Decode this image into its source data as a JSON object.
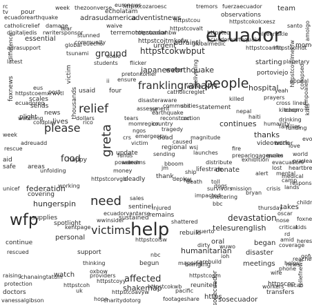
{
  "wordcloud": {
    "text_color": "#2b2b2b",
    "background": "#ffffff",
    "words": [
      {
        "text": "ecuador"
      },
      {
        "text": "help"
      },
      {
        "text": "wfp"
      },
      {
        "text": "people"
      },
      {
        "text": "need"
      },
      {
        "text": "relief"
      },
      {
        "text": "victims"
      },
      {
        "text": "please"
      },
      {
        "text": "greta"
      },
      {
        "text": "franklingraham"
      },
      {
        "text": "affected"
      },
      {
        "text": "food"
      },
      {
        "text": "ground"
      },
      {
        "text": "httpstcokwbput"
      },
      {
        "text": "japanesebrthquake"
      },
      {
        "text": "federation"
      },
      {
        "text": "devastation"
      },
      {
        "text": "telesurenglish"
      },
      {
        "text": "hungerspin"
      },
      {
        "text": "donate"
      },
      {
        "text": "shakemap"
      },
      {
        "text": "humanitarian"
      },
      {
        "text": "disaster"
      },
      {
        "text": "meetings"
      },
      {
        "text": "sosecuador"
      },
      {
        "text": "hospital"
      },
      {
        "text": "thanks"
      },
      {
        "text": "continues"
      },
      {
        "text": "portoviejo"
      },
      {
        "text": "starting"
      },
      {
        "text": "adraintl"
      },
      {
        "text": "httpstcojtmkefw"
      },
      {
        "text": "essential"
      },
      {
        "text": "adrasudamerica"
      },
      {
        "text": "terremotoecuador"
      },
      {
        "text": "thezoonverse"
      },
      {
        "text": "echolatam"
      },
      {
        "text": "globalmedic"
      },
      {
        "text": "videowork"
      },
      {
        "text": "statement"
      },
      {
        "text": "watch"
      },
      {
        "text": "victim"
      },
      {
        "text": "team"
      },
      {
        "text": "observations"
      },
      {
        "text": "fuerzaecuador"
      },
      {
        "text": "euronews"
      },
      {
        "text": "tremors"
      },
      {
        "text": "kitts"
      },
      {
        "text": "latest"
      },
      {
        "text": "support"
      },
      {
        "text": "dead"
      },
      {
        "text": "update"
      },
      {
        "text": "thank"
      },
      {
        "text": "urgent"
      },
      {
        "text": "moment"
      },
      {
        "text": "plight"
      },
      {
        "text": "scales"
      },
      {
        "text": "sends"
      },
      {
        "text": "begun"
      },
      {
        "text": "regional"
      },
      {
        "text": "remains"
      },
      {
        "text": "adventistnews"
      },
      {
        "text": "rescue"
      },
      {
        "text": "aid"
      },
      {
        "text": "dollars"
      },
      {
        "text": "death"
      },
      {
        "text": "toll"
      },
      {
        "text": "news"
      },
      {
        "text": "httpscon"
      },
      {
        "text": "https"
      },
      {
        "text": "began"
      },
      {
        "text": "doctors"
      },
      {
        "text": "vanessalgibson"
      },
      {
        "text": "chanaingtatum"
      },
      {
        "text": "raising"
      },
      {
        "text": "continue"
      },
      {
        "text": "personal"
      },
      {
        "text": "rescued"
      },
      {
        "text": "supplies"
      },
      {
        "text": "spotlight"
      },
      {
        "text": "covering"
      },
      {
        "text": "working"
      },
      {
        "text": "lives"
      },
      {
        "text": "areas"
      },
      {
        "text": "safe"
      },
      {
        "text": "happy"
      },
      {
        "text": "sentinel"
      },
      {
        "text": "sustained"
      },
      {
        "text": "kentpage"
      },
      {
        "text": "ecuadorvantarse"
      },
      {
        "text": "wwinsider"
      },
      {
        "text": "httpstcolsw"
      },
      {
        "text": "bringing"
      },
      {
        "text": "sosecuador"
      },
      {
        "text": "reliefnews"
      },
      {
        "text": "mapping"
      },
      {
        "text": "helps"
      },
      {
        "text": "world"
      },
      {
        "text": "takes"
      },
      {
        "text": "cacao"
      },
      {
        "text": "transfers"
      },
      {
        "text": "workers"
      },
      {
        "text": "footageshare"
      },
      {
        "text": "charitydotorg"
      },
      {
        "text": "hope"
      },
      {
        "text": "reached"
      },
      {
        "text": "phone"
      },
      {
        "text": "coverage"
      },
      {
        "text": "amid"
      },
      {
        "text": "rd"
      },
      {
        "text": "nose"
      },
      {
        "text": "oscar"
      },
      {
        "text": "critical"
      },
      {
        "text": "kids"
      },
      {
        "text": "heres"
      },
      {
        "text": "twitter"
      },
      {
        "text": "deadly"
      },
      {
        "text": "sales"
      },
      {
        "text": "sending"
      },
      {
        "text": "rebuild"
      },
      {
        "text": "search"
      },
      {
        "text": "hit"
      },
      {
        "text": "injured"
      },
      {
        "text": "shattered"
      },
      {
        "text": "impacted"
      },
      {
        "text": "dirty"
      },
      {
        "text": "sheltering"
      },
      {
        "text": "bbc"
      },
      {
        "text": "survivors"
      },
      {
        "text": "dogs"
      },
      {
        "text": "crisis"
      },
      {
        "text": "love"
      },
      {
        "text": "mental"
      },
      {
        "text": "camp"
      },
      {
        "text": "lands"
      },
      {
        "text": "fire"
      },
      {
        "text": "preparingagencies"
      },
      {
        "text": "evacuation"
      },
      {
        "text": "heartbreaking"
      },
      {
        "text": "lost"
      },
      {
        "text": "quake"
      },
      {
        "text": "pray"
      },
      {
        "text": "ecuadorearthquake"
      },
      {
        "text": "catholicrelief"
      },
      {
        "text": "digitaljedis"
      },
      {
        "text": "rwritersponsor"
      },
      {
        "text": "global"
      },
      {
        "text": "adrasupport"
      },
      {
        "text": "stunned"
      },
      {
        "text": "tsunami"
      },
      {
        "text": "difference"
      },
      {
        "text": "elijeenakle"
      },
      {
        "text": "drinking"
      },
      {
        "text": "water"
      },
      {
        "text": "delivering"
      },
      {
        "text": "planetary"
      },
      {
        "text": "collapsed"
      },
      {
        "text": "appeal"
      },
      {
        "text": "cross"
      },
      {
        "text": "lined"
      },
      {
        "text": "kitchen"
      },
      {
        "text": "families"
      },
      {
        "text": "funding"
      },
      {
        "text": "lifestraw"
      },
      {
        "text": "distribute"
      },
      {
        "text": "exhibition"
      },
      {
        "text": "launches"
      },
      {
        "text": "medical"
      },
      {
        "text": "response"
      },
      {
        "text": "damage"
      },
      {
        "text": "week"
      },
      {
        "text": "post"
      },
      {
        "text": "foxnews"
      },
      {
        "text": "communities"
      },
      {
        "text": "four"
      },
      {
        "text": "usaid"
      },
      {
        "text": "thousands"
      },
      {
        "text": "emergency"
      },
      {
        "text": "money"
      },
      {
        "text": "magnitude"
      },
      {
        "text": "tragedy"
      },
      {
        "text": "sbs"
      },
      {
        "text": "prayers"
      },
      {
        "text": "reconstruction"
      },
      {
        "text": "assessment"
      },
      {
        "text": "watching"
      },
      {
        "text": "coldplay"
      },
      {
        "text": "cnn"
      },
      {
        "text": "killed"
      },
      {
        "text": "country"
      },
      {
        "text": "region"
      },
      {
        "text": "victim"
      },
      {
        "text": "funds"
      },
      {
        "text": "teams"
      },
      {
        "text": "power"
      },
      {
        "text": "mission"
      },
      {
        "text": "wife"
      },
      {
        "text": "jm"
      },
      {
        "text": "bboom"
      },
      {
        "text": "community"
      },
      {
        "text": "students"
      },
      {
        "text": "pretonkohler"
      },
      {
        "text": "ensure"
      },
      {
        "text": "disasteraware"
      },
      {
        "text": "flicker"
      },
      {
        "text": "amoigo"
      },
      {
        "text": "httpstco"
      },
      {
        "text": "santo"
      },
      {
        "text": "evo"
      },
      {
        "text": "yeah"
      },
      {
        "text": "johnpoale"
      },
      {
        "text": "works"
      },
      {
        "text": "earthquake"
      },
      {
        "text": "haiti"
      },
      {
        "text": "nepal"
      },
      {
        "text": "caused"
      },
      {
        "text": "ii"
      },
      {
        "text": "tears"
      },
      {
        "text": "mom"
      },
      {
        "text": "ngos"
      },
      {
        "text": "crs"
      },
      {
        "text": "ship"
      },
      {
        "text": "deploy"
      },
      {
        "text": "thursday"
      },
      {
        "text": "bryan"
      },
      {
        "text": "alert"
      },
      {
        "text": "wsj"
      },
      {
        "text": "oral"
      },
      {
        "text": "hrs"
      },
      {
        "text": "nbc"
      },
      {
        "text": "carebuild"
      },
      {
        "text": "ioh"
      },
      {
        "text": "wuwo"
      },
      {
        "text": "eucpro"
      },
      {
        "text": "oxbow"
      },
      {
        "text": "puerto"
      },
      {
        "text": "unicef"
      },
      {
        "text": "euecho"
      },
      {
        "text": "humanity"
      },
      {
        "text": "children"
      },
      {
        "text": "foxnews"
      },
      {
        "text": "thinking"
      },
      {
        "text": "pacific"
      },
      {
        "text": "rico"
      },
      {
        "text": "providers"
      },
      {
        "text": "protection"
      },
      {
        "text": "unfolding"
      },
      {
        "text": "gofundme"
      },
      {
        "text": "scale"
      },
      {
        "text": "clean"
      },
      {
        "text": "uk"
      },
      {
        "text": "news"
      },
      {
        "text": "rc"
      },
      {
        "text": "tv"
      },
      {
        "text": "tear"
      },
      {
        "text": "week"
      },
      {
        "text": "pour"
      },
      {
        "text": "catholicreglet"
      },
      {
        "text": "ecuadorearthquake"
      },
      {
        "text": "httpstcorvgb"
      },
      {
        "text": "waive"
      },
      {
        "text": "httpstcoanfin"
      },
      {
        "text": "httpstcoemxrwvtl"
      },
      {
        "text": "eus"
      },
      {
        "text": "ecuadoreq"
      },
      {
        "text": "adreuadd"
      },
      {
        "text": "reunited"
      },
      {
        "text": "httpstcoum"
      },
      {
        "text": "httpstcoh"
      },
      {
        "text": "httpstcovalt"
      },
      {
        "text": "httpstcou"
      },
      {
        "text": "httpstcokwb"
      },
      {
        "text": "httpstcoyjlmekfw"
      },
      {
        "text": "httpstcoavyw"
      },
      {
        "text": "httpstcolhdt"
      },
      {
        "text": "httpstcokolcxesz"
      },
      {
        "text": "httpstcoyy"
      },
      {
        "text": "httpstcozaroesc"
      },
      {
        "text": "httpstcouahbw"
      },
      {
        "text": "httpstcopmzifqxo"
      },
      {
        "text": "httpstcosnjodua"
      }
    ]
  }
}
